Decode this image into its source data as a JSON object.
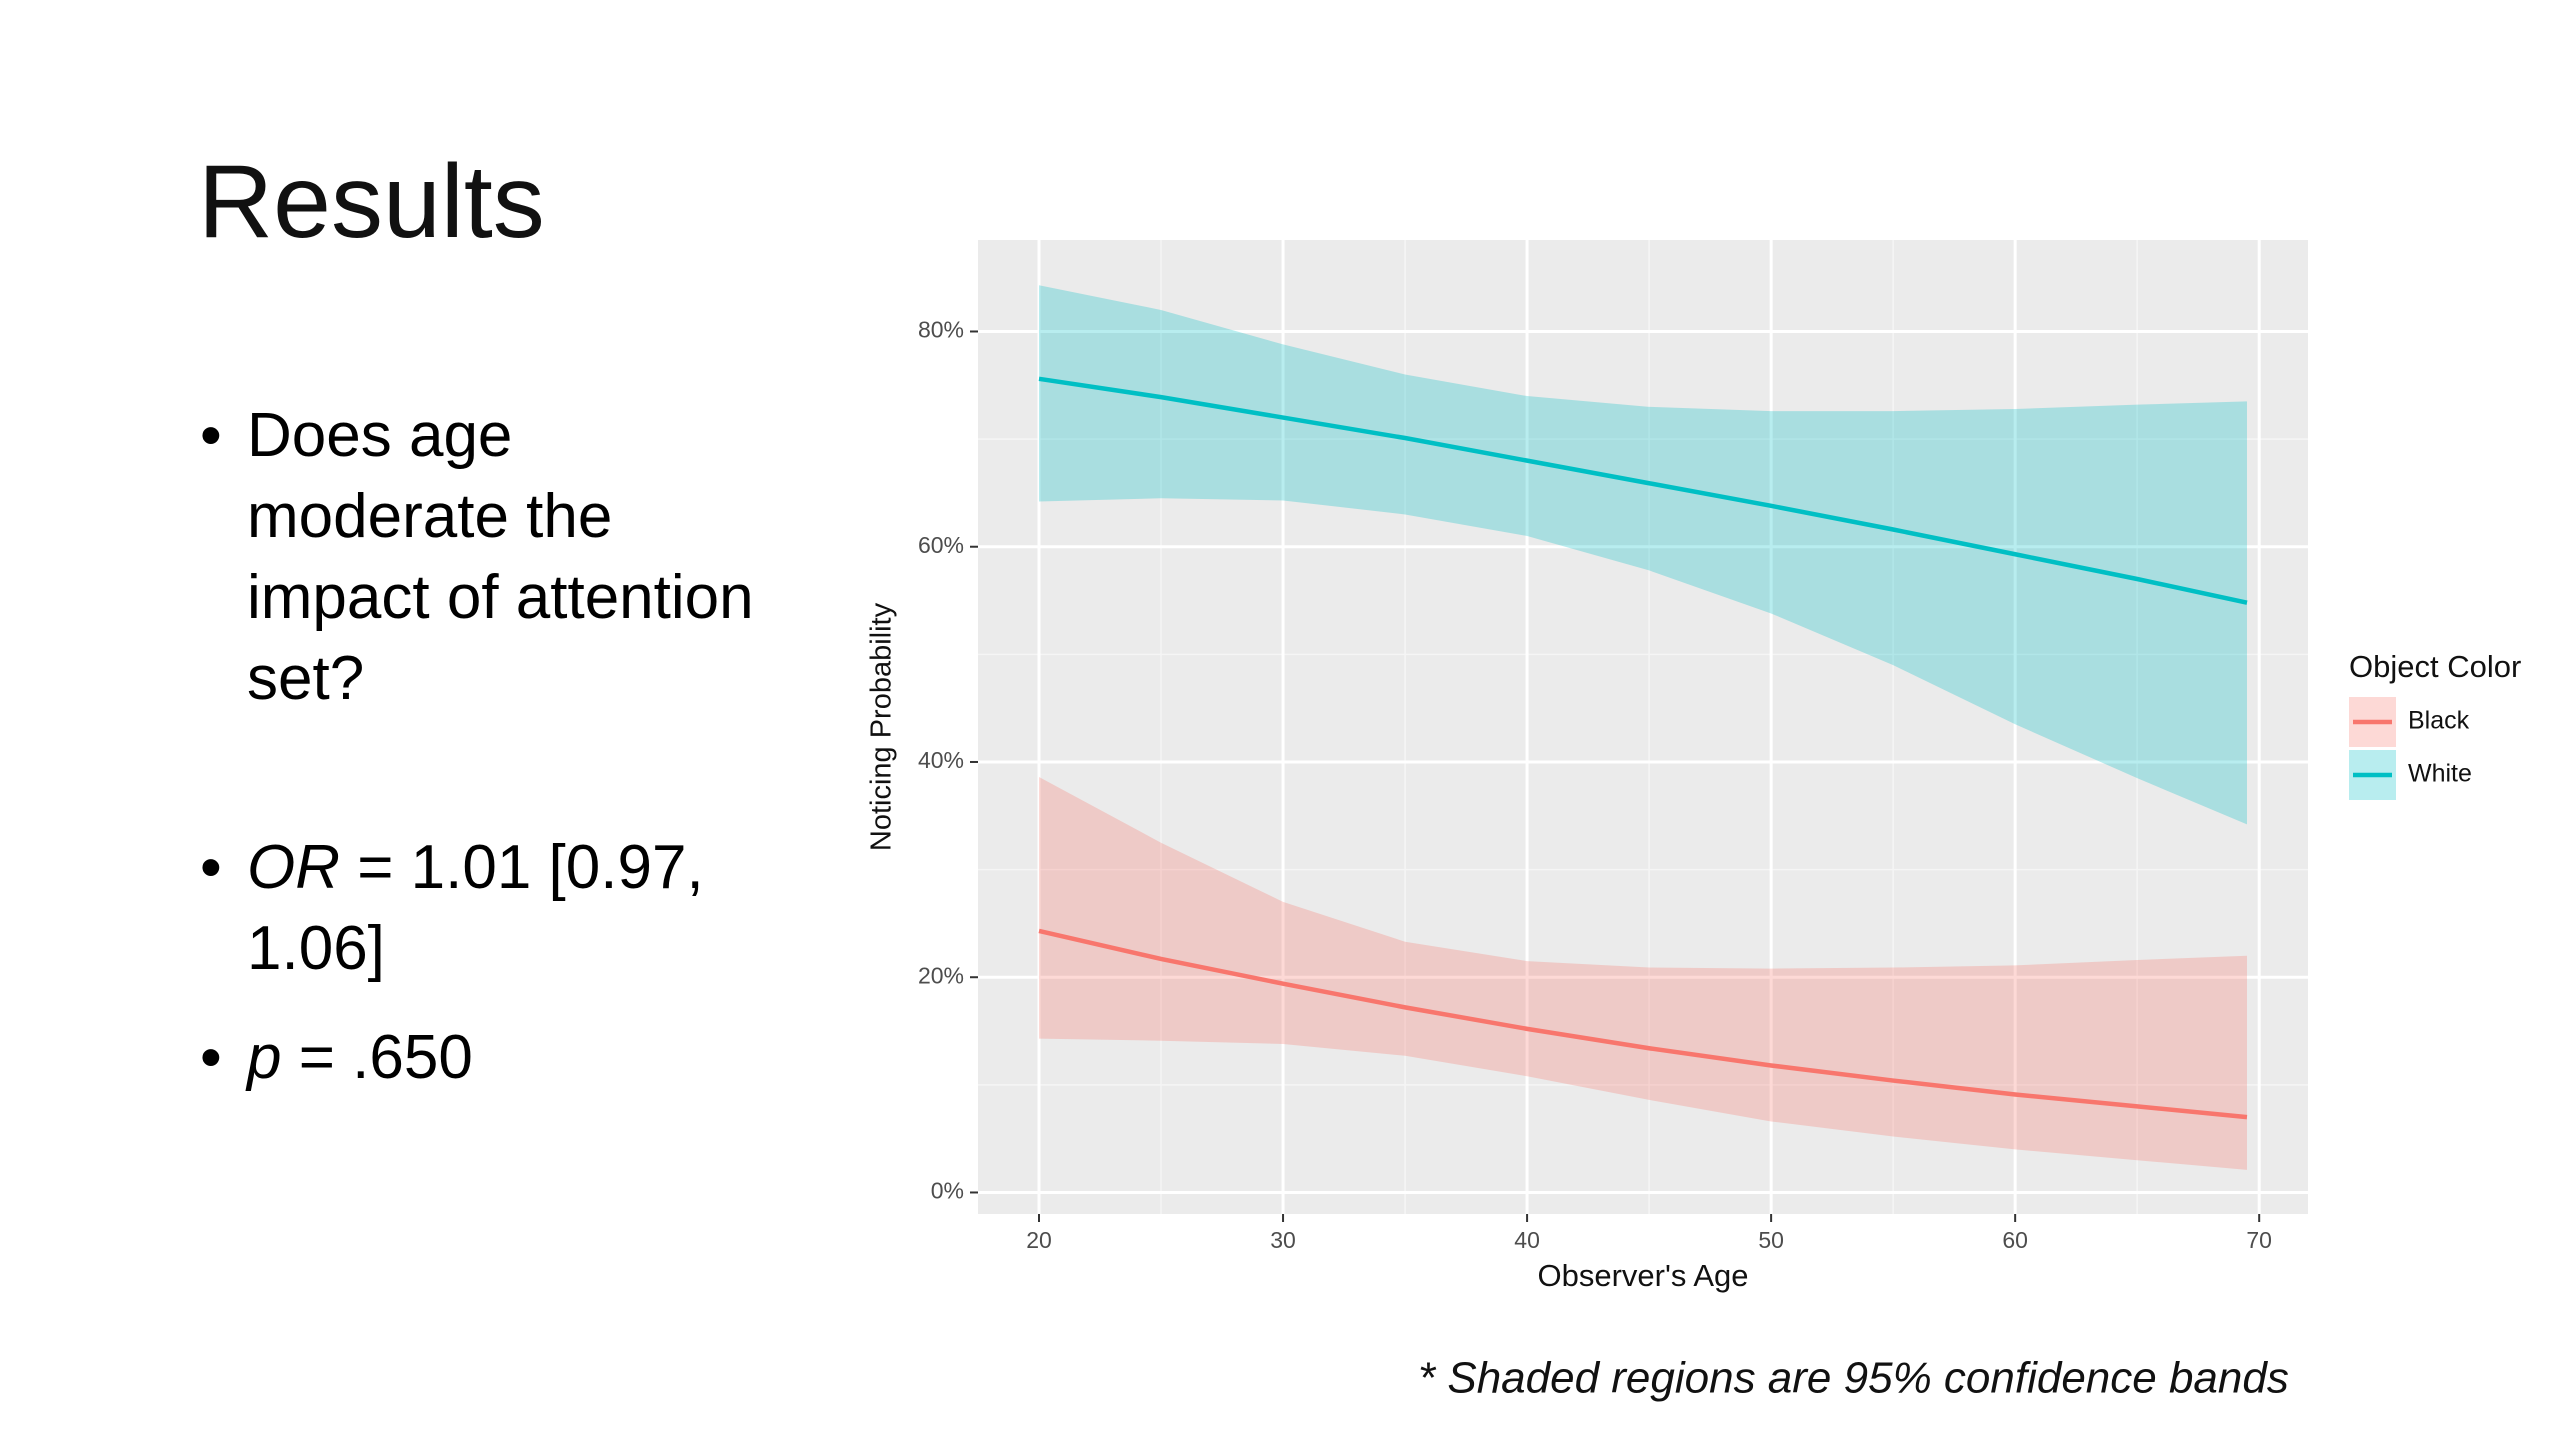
{
  "slide": {
    "title": "Results",
    "bullets": [
      [
        {
          "text": "Does age moderate the impact of attention set?",
          "italic": false
        }
      ],
      [
        {
          "text": "OR",
          "italic": true
        },
        {
          "text": " = 1.01 [0.97, 1.06]",
          "italic": false
        }
      ],
      [
        {
          "text": "p",
          "italic": true
        },
        {
          "text": " = .650",
          "italic": false
        }
      ]
    ],
    "footnote": "* Shaded regions are 95% confidence bands"
  },
  "chart_data": {
    "type": "line",
    "x_label": "Observer's Age",
    "y_label": "Noticing Probability",
    "legend_title": "Object Color",
    "legend_position": "right",
    "grid": true,
    "background": "#ebebeb",
    "xlim": [
      17.5,
      72
    ],
    "ylim": [
      -2,
      88.5
    ],
    "xticks": [
      20,
      30,
      40,
      50,
      60,
      70
    ],
    "yticks": [
      {
        "value": 0,
        "label": "0%"
      },
      {
        "value": 20,
        "label": "20%"
      },
      {
        "value": 40,
        "label": "40%"
      },
      {
        "value": 60,
        "label": "60%"
      },
      {
        "value": 80,
        "label": "80%"
      }
    ],
    "x": [
      20,
      25,
      30,
      35,
      40,
      45,
      50,
      55,
      60,
      65,
      69.5
    ],
    "series": [
      {
        "name": "Black",
        "color": "#f8766d",
        "values": [
          24.3,
          21.7,
          19.4,
          17.2,
          15.2,
          13.4,
          11.8,
          10.4,
          9.1,
          8.0,
          7.0
        ],
        "lower": [
          14.3,
          14.1,
          13.8,
          12.7,
          10.8,
          8.6,
          6.6,
          5.2,
          4.0,
          3.0,
          2.1
        ],
        "upper": [
          38.6,
          32.5,
          27.0,
          23.3,
          21.5,
          20.9,
          20.8,
          20.9,
          21.1,
          21.6,
          22.0
        ]
      },
      {
        "name": "White",
        "color": "#00bfc4",
        "values": [
          75.6,
          73.9,
          72.0,
          70.1,
          68.0,
          65.9,
          63.8,
          61.6,
          59.3,
          57.0,
          54.8
        ],
        "lower": [
          64.2,
          64.5,
          64.3,
          63.0,
          61.0,
          57.8,
          53.8,
          49.0,
          43.5,
          38.5,
          34.2
        ],
        "upper": [
          84.3,
          82.0,
          78.8,
          76.0,
          74.0,
          73.0,
          72.6,
          72.6,
          72.8,
          73.2,
          73.5
        ]
      }
    ]
  }
}
